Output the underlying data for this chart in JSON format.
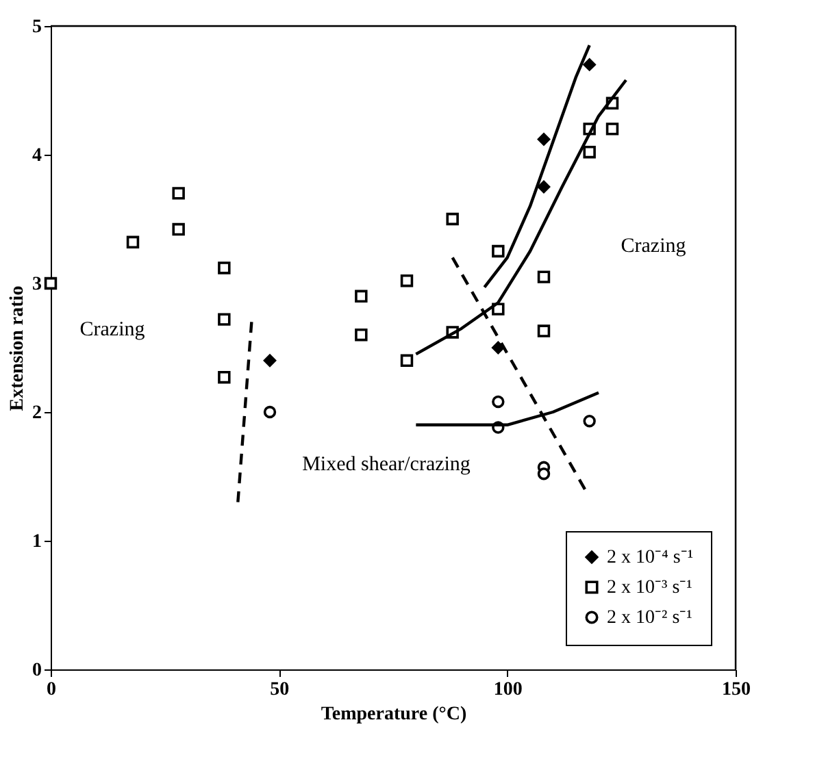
{
  "chart_data": {
    "type": "scatter",
    "xlabel": "Temperature (°C)",
    "ylabel": "Extension ratio",
    "xlim": [
      0,
      150
    ],
    "ylim": [
      0,
      5
    ],
    "xticks": [
      0,
      50,
      100,
      150
    ],
    "yticks": [
      0,
      1,
      2,
      3,
      4,
      5
    ],
    "grid": false,
    "legend": "bottom right",
    "series": [
      {
        "name": "2 x 10⁻⁴ s⁻¹",
        "type": "scatter",
        "marker": "diamond",
        "color": "#000000",
        "x": [
          48,
          118,
          108,
          108,
          98
        ],
        "values": [
          2.4,
          4.7,
          4.12,
          3.75,
          2.5
        ]
      },
      {
        "name": "2 x 10⁻³ s⁻¹",
        "type": "scatter",
        "marker": "square",
        "color": "#000000",
        "x": [
          0,
          18,
          28,
          28,
          38,
          38,
          38,
          68,
          68,
          78,
          78,
          88,
          88,
          98,
          98,
          108,
          108,
          118,
          118,
          123,
          123
        ],
        "values": [
          3.0,
          3.32,
          3.7,
          3.42,
          3.12,
          2.72,
          2.27,
          2.9,
          2.6,
          3.02,
          2.4,
          3.5,
          2.62,
          3.25,
          2.8,
          3.05,
          2.63,
          4.2,
          4.02,
          4.4,
          4.2
        ]
      },
      {
        "name": "2 x 10⁻² s⁻¹",
        "type": "scatter",
        "marker": "circle",
        "color": "#000000",
        "x": [
          48,
          98,
          98,
          108,
          108,
          118
        ],
        "values": [
          2.0,
          2.08,
          1.88,
          1.57,
          1.52,
          1.93
        ]
      },
      {
        "type": "line",
        "line_style": "solid",
        "color": "#000000",
        "x": [
          95,
          100,
          105,
          110,
          115,
          118
        ],
        "values": [
          2.97,
          3.2,
          3.6,
          4.1,
          4.6,
          4.85
        ]
      },
      {
        "type": "line",
        "line_style": "solid",
        "color": "#000000",
        "x": [
          80,
          90,
          98,
          105,
          112,
          120,
          126
        ],
        "values": [
          2.45,
          2.65,
          2.85,
          3.25,
          3.75,
          4.3,
          4.58
        ]
      },
      {
        "type": "line",
        "line_style": "solid",
        "color": "#000000",
        "x": [
          80,
          95,
          100,
          110,
          120
        ],
        "values": [
          1.9,
          1.9,
          1.9,
          2.0,
          2.15
        ]
      },
      {
        "type": "line",
        "line_style": "dashed",
        "color": "#000000",
        "x": [
          44,
          41
        ],
        "values": [
          2.7,
          1.3
        ]
      },
      {
        "type": "line",
        "line_style": "dashed",
        "color": "#000000",
        "x": [
          88,
          117
        ],
        "values": [
          3.2,
          1.4
        ]
      }
    ],
    "annotations": [
      "Crazing",
      "Crazing",
      "Mixed shear/crazing"
    ]
  }
}
